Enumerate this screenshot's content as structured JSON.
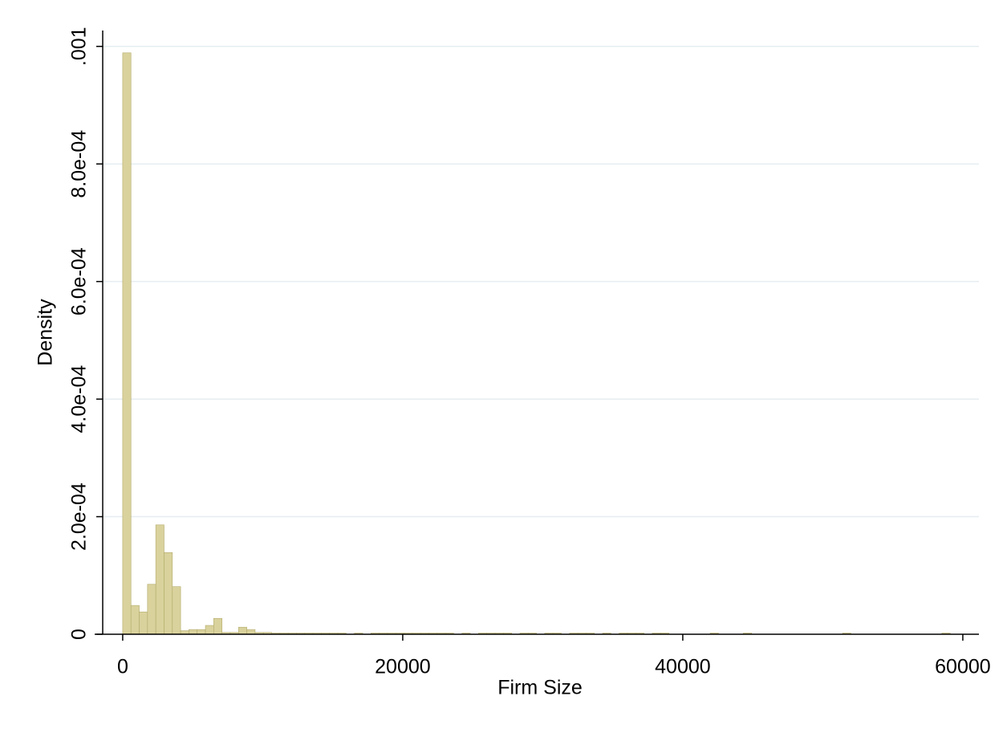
{
  "chart_data": {
    "type": "histogram",
    "x_label": "Firm Size",
    "y_label": "Density",
    "bins": [
      0,
      591,
      1182,
      1773,
      2364,
      2955,
      3546,
      4137,
      4728,
      5319,
      5910,
      6501,
      7092,
      7683,
      8274,
      8865,
      9456,
      10047,
      10638,
      11229,
      11820,
      12411,
      13002,
      13593,
      14184,
      14775,
      15366,
      15957,
      16548,
      17139,
      17730,
      18321,
      18912,
      19503,
      20094,
      20685,
      21276,
      21867,
      22458,
      23049,
      23640,
      24231,
      24822,
      25413,
      26004,
      26595,
      27186,
      27777,
      28368,
      28959,
      29550,
      30141,
      30732,
      31323,
      31914,
      32505,
      33096,
      33687,
      34278,
      34869,
      35460,
      36051,
      36642,
      37233,
      37824,
      38415,
      39006,
      39597,
      40188,
      40779,
      41370,
      41961,
      42552,
      43143,
      43734,
      44325,
      44916,
      45507,
      46098,
      46689,
      47280,
      47871,
      48462,
      49053,
      49644,
      50235,
      50826,
      51417,
      52008,
      52599,
      53190,
      53781,
      54372,
      54963,
      55554,
      56145,
      56736,
      57327,
      57918,
      58509,
      59100
    ],
    "values": [
      0.000989,
      4.9e-05,
      3.8e-05,
      8.5e-05,
      0.000186,
      0.000139,
      8.1e-05,
      6e-06,
      8e-06,
      8e-06,
      1.5e-05,
      2.7e-05,
      3e-06,
      3e-06,
      1.2e-05,
      8e-06,
      3e-06,
      3e-06,
      2e-06,
      2e-06,
      2e-06,
      2e-06,
      2e-06,
      2e-06,
      2e-06,
      2e-06,
      2e-06,
      0,
      2e-06,
      0,
      2e-06,
      2e-06,
      2e-06,
      2e-06,
      2e-06,
      2e-06,
      2e-06,
      2e-06,
      2e-06,
      2e-06,
      0,
      2e-06,
      0,
      2e-06,
      2e-06,
      2e-06,
      2e-06,
      0,
      2e-06,
      2e-06,
      0,
      2e-06,
      2e-06,
      0,
      2e-06,
      2e-06,
      2e-06,
      0,
      2e-06,
      0,
      2e-06,
      2e-06,
      2e-06,
      0,
      2e-06,
      2e-06,
      0,
      0,
      0,
      0,
      0,
      2e-06,
      0,
      0,
      0,
      2e-06,
      0,
      0,
      0,
      0,
      0,
      0,
      0,
      0,
      0,
      0,
      0,
      2e-06,
      0,
      0,
      0,
      0,
      0,
      0,
      0,
      0,
      0,
      0,
      0,
      2e-06
    ],
    "color": "#d9d29d",
    "edge_color": "#b3aa6a",
    "xlim": [
      -2000,
      61150
    ],
    "xticks": [
      0,
      20000,
      40000,
      60000
    ],
    "ylim": [
      0,
      0.001027
    ],
    "yticks": [
      0,
      {
        "value": 0.0002,
        "label": "2.0e-04"
      },
      {
        "value": 0.0004,
        "label": "4.0e-04"
      },
      {
        "value": 0.0006,
        "label": "6.0e-04"
      },
      {
        "value": 0.0008,
        "label": "8.0e-04"
      },
      {
        "value": 0.001,
        "label": ".001"
      }
    ],
    "grid": true
  }
}
